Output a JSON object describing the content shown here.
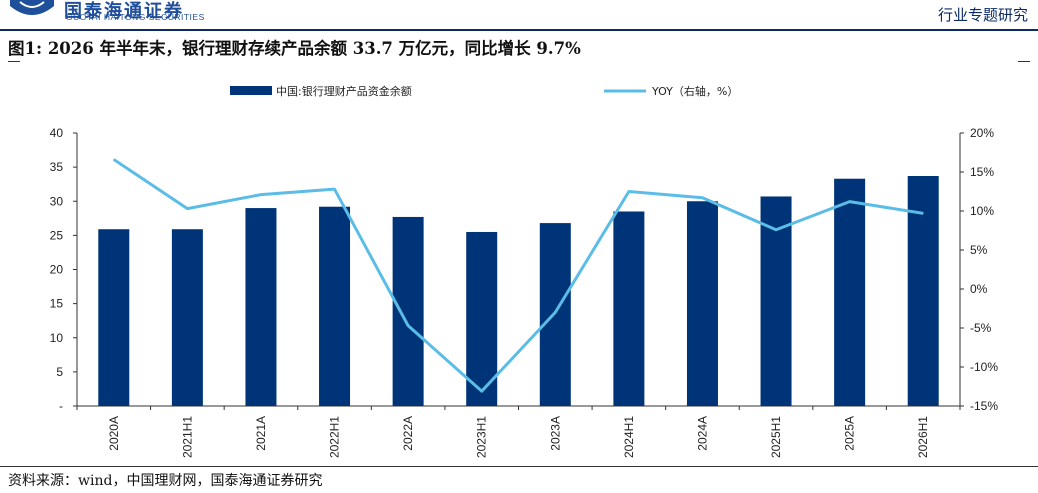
{
  "header": {
    "logo_cn": "国泰海通证券",
    "logo_en": "GUOTAI HAITONG SECURITIES",
    "category": "行业专题研究"
  },
  "figure": {
    "title": "图1: 2026 年半年末，银行理财存续产品余额 33.7 万亿元，同比增长 9.7%",
    "source": "资料来源：wind，中国理财网，国泰海通证券研究"
  },
  "colors": {
    "bar": "#003478",
    "line": "#5bbde6",
    "brand": "#1f4e9a"
  },
  "chart_data": {
    "type": "bar",
    "categories": [
      "2020A",
      "2021H1",
      "2021A",
      "2022H1",
      "2022A",
      "2023H1",
      "2023A",
      "2024H1",
      "2024A",
      "2025H1",
      "2025A",
      "2026H1"
    ],
    "series": [
      {
        "name": "中国:银行理财产品资金余额",
        "type": "bar",
        "axis": "left",
        "values": [
          25.9,
          25.9,
          29.0,
          29.2,
          27.7,
          25.5,
          26.8,
          28.5,
          30.0,
          30.7,
          33.3,
          33.7
        ]
      },
      {
        "name": "YOY（右轴，%）",
        "type": "line",
        "axis": "right",
        "values": [
          16.6,
          10.3,
          12.1,
          12.8,
          -4.7,
          -13.1,
          -3.0,
          12.5,
          11.7,
          7.6,
          11.2,
          9.7
        ]
      }
    ],
    "left_axis": {
      "ylim": [
        0,
        40
      ],
      "ticks": [
        0,
        5,
        10,
        15,
        20,
        25,
        30,
        35,
        40
      ],
      "tick_labels": [
        "-",
        "5",
        "10",
        "15",
        "20",
        "25",
        "30",
        "35",
        "40"
      ]
    },
    "right_axis": {
      "ylim": [
        -15,
        20
      ],
      "ticks": [
        -15,
        -10,
        -5,
        0,
        5,
        10,
        15,
        20
      ],
      "tick_labels": [
        "-15%",
        "-10%",
        "-5%",
        "0%",
        "5%",
        "10%",
        "15%",
        "20%"
      ]
    },
    "grid": false,
    "legend_position": "top-center"
  }
}
